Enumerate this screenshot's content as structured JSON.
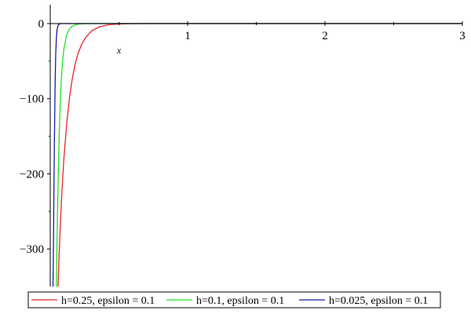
{
  "chart_data": {
    "type": "line",
    "title": "",
    "xlabel": "x",
    "ylabel": "",
    "xlim": [
      0,
      3
    ],
    "ylim": [
      -350,
      0
    ],
    "x_ticks": [
      1,
      2,
      3
    ],
    "x_tick_labels": [
      "1",
      "2",
      "3"
    ],
    "y_ticks": [
      0,
      -100,
      -200,
      -300
    ],
    "y_tick_labels": [
      "0",
      "−100",
      "−200",
      "−300"
    ],
    "grid": false,
    "legend_position": "bottom",
    "series": [
      {
        "name": "h=0.25, epsilon = 0.1",
        "color": "#e8262b",
        "x": [
          0.057,
          0.063,
          0.07,
          0.08,
          0.09,
          0.1,
          0.12,
          0.14,
          0.16,
          0.18,
          0.2,
          0.23,
          0.26,
          0.3,
          0.35,
          0.4,
          0.45,
          0.5,
          0.55,
          0.6,
          0.8,
          1.0,
          1.5,
          2.0,
          2.5,
          3.0
        ],
        "y": [
          -350,
          -315,
          -282,
          -242,
          -208,
          -178,
          -133,
          -99,
          -74,
          -55,
          -41,
          -27,
          -18,
          -10,
          -5,
          -2.5,
          -1.2,
          -0.6,
          -0.3,
          -0.1,
          0,
          0,
          0,
          0,
          0,
          0
        ]
      },
      {
        "name": "h=0.1, epsilon = 0.1",
        "color": "#22e022",
        "x": [
          0.045,
          0.048,
          0.052,
          0.056,
          0.06,
          0.065,
          0.07,
          0.08,
          0.09,
          0.1,
          0.12,
          0.14,
          0.16,
          0.2,
          0.25,
          0.3,
          0.5,
          1.0,
          2.0,
          3.0
        ],
        "y": [
          -350,
          -308,
          -262,
          -223,
          -188,
          -150,
          -120,
          -77,
          -50,
          -33,
          -15,
          -7,
          -3.5,
          -0.8,
          -0.1,
          0,
          0,
          0,
          0,
          0
        ]
      },
      {
        "name": "h=0.025, epsilon = 0.1",
        "color": "#1a1aa8",
        "x": [
          0.02,
          0.022,
          0.025,
          0.028,
          0.032,
          0.036,
          0.04,
          0.045,
          0.05,
          0.055,
          0.06,
          0.07,
          0.08,
          0.1,
          0.15,
          0.3,
          1.0,
          2.0,
          3.0
        ],
        "y": [
          -350,
          -320,
          -260,
          -200,
          -130,
          -75,
          -40,
          -18,
          -8,
          -3.5,
          -1.5,
          -0.3,
          0,
          0,
          0,
          0,
          0,
          0,
          0
        ]
      }
    ]
  }
}
